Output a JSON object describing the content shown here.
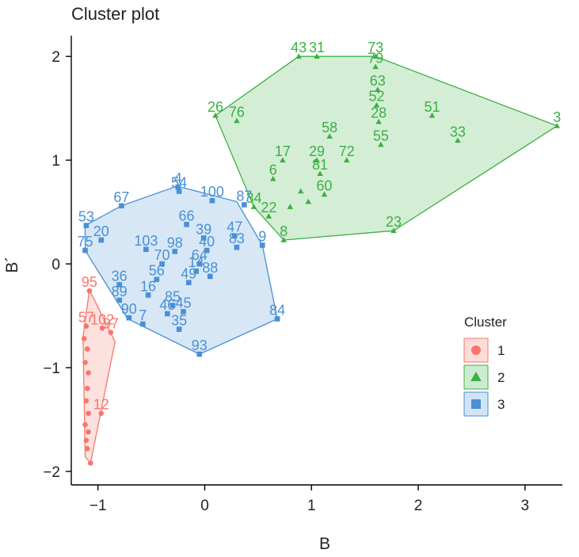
{
  "chart_data": {
    "type": "scatter",
    "title": "Cluster plot",
    "xlabel": "B",
    "ylabel": "B´",
    "xlim": [
      -1.25,
      3.35
    ],
    "ylim": [
      -2.13,
      2.2
    ],
    "xticks": [
      -1,
      0,
      1,
      2,
      3
    ],
    "yticks": [
      -2,
      -1,
      0,
      1,
      2
    ],
    "grid": false,
    "legend": {
      "title": "Cluster",
      "position": "right",
      "entries": [
        {
          "label": "1",
          "color": "#F8766D",
          "marker": "circle"
        },
        {
          "label": "2",
          "color": "#3CB043",
          "marker": "triangle"
        },
        {
          "label": "3",
          "color": "#4A90D6",
          "marker": "square"
        }
      ]
    },
    "clusters": [
      {
        "name": "1",
        "color": "#F8766D",
        "marker": "circle",
        "hull": [
          [
            -1.08,
            -0.25
          ],
          [
            -0.84,
            -0.75
          ],
          [
            -1.07,
            -1.92
          ],
          [
            -1.12,
            -1.86
          ],
          [
            -1.14,
            -0.7
          ]
        ],
        "points": [
          {
            "label": "95",
            "x": -1.08,
            "y": -0.26
          },
          {
            "label": "57",
            "x": -1.11,
            "y": -0.6
          },
          {
            "label": "102",
            "x": -0.96,
            "y": -0.62
          },
          {
            "label": "97",
            "x": -0.88,
            "y": -0.66
          },
          {
            "label": "",
            "x": -1.13,
            "y": -0.72
          },
          {
            "label": "",
            "x": -1.1,
            "y": -0.82
          },
          {
            "label": "",
            "x": -1.12,
            "y": -0.95
          },
          {
            "label": "",
            "x": -1.09,
            "y": -1.05
          },
          {
            "label": "",
            "x": -1.1,
            "y": -1.2
          },
          {
            "label": "",
            "x": -1.11,
            "y": -1.32
          },
          {
            "label": "",
            "x": -1.09,
            "y": -1.44
          },
          {
            "label": "12",
            "x": -0.97,
            "y": -1.44
          },
          {
            "label": "",
            "x": -1.12,
            "y": -1.55
          },
          {
            "label": "",
            "x": -1.09,
            "y": -1.62
          },
          {
            "label": "",
            "x": -1.11,
            "y": -1.7
          },
          {
            "label": "",
            "x": -1.1,
            "y": -1.78
          },
          {
            "label": "",
            "x": -1.07,
            "y": -1.92
          }
        ]
      },
      {
        "name": "2",
        "color": "#3CB043",
        "marker": "triangle",
        "hull": [
          [
            0.1,
            1.43
          ],
          [
            0.88,
            2.0
          ],
          [
            1.6,
            2.0
          ],
          [
            3.3,
            1.33
          ],
          [
            1.77,
            0.32
          ],
          [
            0.74,
            0.23
          ],
          [
            0.46,
            0.55
          ]
        ],
        "points": [
          {
            "label": "43",
            "x": 0.88,
            "y": 2.0
          },
          {
            "label": "31",
            "x": 1.05,
            "y": 2.0
          },
          {
            "label": "73",
            "x": 1.6,
            "y": 2.0
          },
          {
            "label": "79",
            "x": 1.6,
            "y": 1.9
          },
          {
            "label": "63",
            "x": 1.62,
            "y": 1.68
          },
          {
            "label": "52",
            "x": 1.61,
            "y": 1.53
          },
          {
            "label": "28",
            "x": 1.63,
            "y": 1.37
          },
          {
            "label": "26",
            "x": 0.1,
            "y": 1.43
          },
          {
            "label": "76",
            "x": 0.3,
            "y": 1.38
          },
          {
            "label": "51",
            "x": 2.13,
            "y": 1.43
          },
          {
            "label": "3",
            "x": 3.3,
            "y": 1.33
          },
          {
            "label": "33",
            "x": 2.37,
            "y": 1.19
          },
          {
            "label": "58",
            "x": 1.17,
            "y": 1.23
          },
          {
            "label": "55",
            "x": 1.65,
            "y": 1.15
          },
          {
            "label": "17",
            "x": 0.73,
            "y": 1.0
          },
          {
            "label": "29",
            "x": 1.05,
            "y": 1.0
          },
          {
            "label": "72",
            "x": 1.33,
            "y": 1.0
          },
          {
            "label": "6",
            "x": 0.64,
            "y": 0.82
          },
          {
            "label": "81",
            "x": 1.08,
            "y": 0.87
          },
          {
            "label": "60",
            "x": 1.12,
            "y": 0.67
          },
          {
            "label": "23",
            "x": 1.77,
            "y": 0.32
          },
          {
            "label": "8",
            "x": 0.74,
            "y": 0.23
          },
          {
            "label": "34",
            "x": 0.46,
            "y": 0.55
          },
          {
            "label": "22",
            "x": 0.6,
            "y": 0.46
          },
          {
            "label": "",
            "x": 0.9,
            "y": 0.7
          },
          {
            "label": "",
            "x": 0.97,
            "y": 0.6
          },
          {
            "label": "",
            "x": 0.8,
            "y": 0.55
          }
        ]
      },
      {
        "name": "3",
        "color": "#4A90D6",
        "marker": "square",
        "hull": [
          [
            -1.12,
            0.37
          ],
          [
            -0.78,
            0.56
          ],
          [
            -0.26,
            0.75
          ],
          [
            0.3,
            0.6
          ],
          [
            0.54,
            0.18
          ],
          [
            0.68,
            -0.53
          ],
          [
            -0.05,
            -0.87
          ],
          [
            -0.72,
            -0.53
          ],
          [
            -1.12,
            0.13
          ]
        ],
        "points": [
          {
            "label": "4",
            "x": -0.25,
            "y": 0.74
          },
          {
            "label": "54",
            "x": -0.24,
            "y": 0.7
          },
          {
            "label": "100",
            "x": 0.07,
            "y": 0.61
          },
          {
            "label": "87",
            "x": 0.37,
            "y": 0.57
          },
          {
            "label": "67",
            "x": -0.78,
            "y": 0.56
          },
          {
            "label": "53",
            "x": -1.11,
            "y": 0.37
          },
          {
            "label": "20",
            "x": -0.97,
            "y": 0.23
          },
          {
            "label": "75",
            "x": -1.12,
            "y": 0.13
          },
          {
            "label": "66",
            "x": -0.17,
            "y": 0.38
          },
          {
            "label": "39",
            "x": -0.01,
            "y": 0.25
          },
          {
            "label": "47",
            "x": 0.28,
            "y": 0.27
          },
          {
            "label": "9",
            "x": 0.54,
            "y": 0.18
          },
          {
            "label": "103",
            "x": -0.55,
            "y": 0.14
          },
          {
            "label": "98",
            "x": -0.28,
            "y": 0.12
          },
          {
            "label": "40",
            "x": 0.02,
            "y": 0.13
          },
          {
            "label": "83",
            "x": 0.3,
            "y": 0.16
          },
          {
            "label": "70",
            "x": -0.4,
            "y": 0.0
          },
          {
            "label": "64",
            "x": -0.05,
            "y": 0.0
          },
          {
            "label": "14",
            "x": -0.08,
            "y": -0.07
          },
          {
            "label": "88",
            "x": 0.05,
            "y": -0.12
          },
          {
            "label": "56",
            "x": -0.45,
            "y": -0.15
          },
          {
            "label": "16",
            "x": -0.53,
            "y": -0.3
          },
          {
            "label": "36",
            "x": -0.8,
            "y": -0.2
          },
          {
            "label": "49",
            "x": -0.15,
            "y": -0.18
          },
          {
            "label": "89",
            "x": -0.8,
            "y": -0.35
          },
          {
            "label": "85",
            "x": -0.3,
            "y": -0.4
          },
          {
            "label": "46",
            "x": -0.35,
            "y": -0.48
          },
          {
            "label": "45",
            "x": -0.2,
            "y": -0.46
          },
          {
            "label": "90",
            "x": -0.71,
            "y": -0.52
          },
          {
            "label": "7",
            "x": -0.58,
            "y": -0.58
          },
          {
            "label": "35",
            "x": -0.24,
            "y": -0.63
          },
          {
            "label": "84",
            "x": 0.68,
            "y": -0.53
          },
          {
            "label": "93",
            "x": -0.05,
            "y": -0.87
          }
        ]
      }
    ]
  }
}
